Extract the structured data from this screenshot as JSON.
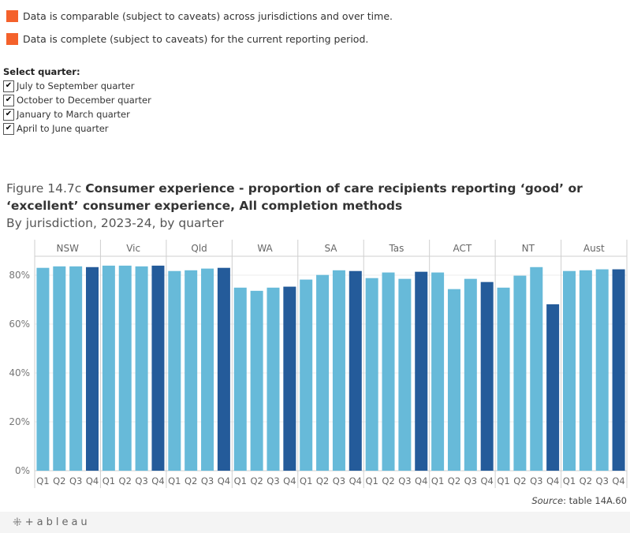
{
  "legend": {
    "swatch_color": "#F4612B",
    "items": [
      "Data is comparable (subject to caveats) across jurisdictions and over time.",
      "Data is complete (subject to caveats) for the current reporting period."
    ]
  },
  "filter": {
    "title": "Select quarter:",
    "check_glyph": "✔",
    "options": [
      {
        "label": "July to September quarter",
        "checked": true
      },
      {
        "label": "October to December quarter",
        "checked": true
      },
      {
        "label": "January to March quarter",
        "checked": true
      },
      {
        "label": "April to June quarter",
        "checked": true
      }
    ]
  },
  "title": {
    "prefix": "Figure 14.7c",
    "main": "Consumer experience - proportion of care recipients reporting ‘good’ or ‘excellent’ consumer experience, All completion methods",
    "subtitle": "By jurisdiction, 2023-24, by quarter"
  },
  "source": {
    "label": "Source",
    "text": ": table 14A.60"
  },
  "footer": {
    "logo_mark": "⁜",
    "logo_text": "+ableau"
  },
  "chart_data": {
    "type": "bar",
    "title": "Figure 14.7c Consumer experience - proportion of care recipients reporting ‘good’ or ‘excellent’ consumer experience, All completion methods",
    "subtitle": "By jurisdiction, 2023-24, by quarter",
    "xlabel": "",
    "ylabel": "",
    "ylim": [
      0,
      90
    ],
    "yticks": [
      0,
      20,
      40,
      60,
      80
    ],
    "ytick_labels": [
      "0%",
      "20%",
      "40%",
      "60%",
      "80%"
    ],
    "grid": true,
    "panels": [
      "NSW",
      "Vic",
      "Qld",
      "WA",
      "SA",
      "Tas",
      "ACT",
      "NT",
      "Aust"
    ],
    "categories": [
      "Q1",
      "Q2",
      "Q3",
      "Q4"
    ],
    "colors": {
      "Q1": "#67BAD9",
      "Q2": "#67BAD9",
      "Q3": "#67BAD9",
      "Q4": "#245B9A"
    },
    "series": [
      {
        "name": "NSW",
        "values": [
          83.0,
          83.6,
          83.6,
          83.3
        ]
      },
      {
        "name": "Vic",
        "values": [
          83.9,
          83.9,
          83.6,
          83.9
        ]
      },
      {
        "name": "Qld",
        "values": [
          81.7,
          82.0,
          82.7,
          83.0
        ]
      },
      {
        "name": "WA",
        "values": [
          74.9,
          73.6,
          74.9,
          75.3
        ]
      },
      {
        "name": "SA",
        "values": [
          78.2,
          80.1,
          82.0,
          81.7
        ]
      },
      {
        "name": "Tas",
        "values": [
          78.8,
          81.1,
          78.5,
          81.4
        ]
      },
      {
        "name": "ACT",
        "values": [
          81.1,
          74.3,
          78.5,
          77.2
        ]
      },
      {
        "name": "NT",
        "values": [
          74.9,
          79.8,
          83.3,
          68.1
        ]
      },
      {
        "name": "Aust",
        "values": [
          81.7,
          82.0,
          82.4,
          82.4
        ]
      }
    ]
  }
}
